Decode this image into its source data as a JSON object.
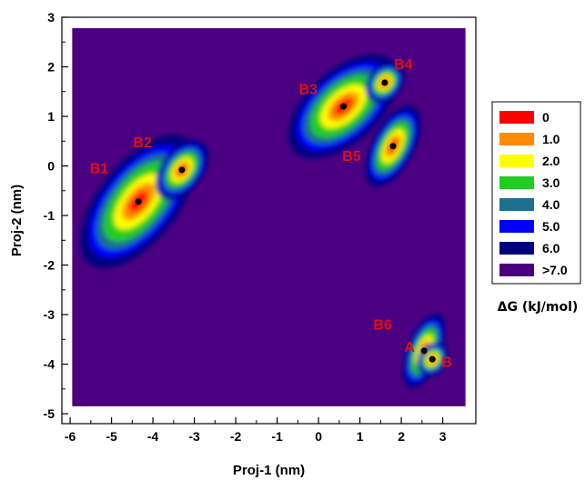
{
  "chart_data": {
    "type": "heatmap",
    "title": "",
    "xlabel": "Proj-1 (nm)",
    "ylabel": "Proj-2 (nm)",
    "xlim": [
      -6.2,
      3.8
    ],
    "ylim": [
      -5.2,
      3.0
    ],
    "x_ticks": [
      "-6",
      "-5",
      "-4",
      "-3",
      "-2",
      "-1",
      "0",
      "1",
      "2",
      "3"
    ],
    "y_ticks": [
      "3",
      "2",
      "1",
      "0",
      "-1",
      "-2",
      "-3",
      "-4",
      "-5"
    ],
    "plot_region": {
      "x": [
        -5.95,
        3.55
      ],
      "y": [
        -4.85,
        2.78
      ]
    },
    "background_color": "#4b0082",
    "legend": {
      "title": "ΔG (kJ/mol)",
      "position": "right",
      "entries": [
        {
          "label": "0",
          "color": "#ff0000"
        },
        {
          "label": "1.0",
          "color": "#ff8c00"
        },
        {
          "label": "2.0",
          "color": "#ffff00"
        },
        {
          "label": "3.0",
          "color": "#22cc22"
        },
        {
          "label": "4.0",
          "color": "#1f6f8f"
        },
        {
          "label": "5.0",
          "color": "#0000ff"
        },
        {
          "label": "6.0",
          "color": "#00007f"
        },
        {
          "label": ">7.0",
          "color": "#4b0082"
        }
      ]
    },
    "basins": [
      {
        "x": [
          -5.4,
          -4.0,
          -3.0
        ],
        "y": [
          -1.8,
          -0.6,
          0.7
        ],
        "min": [
          -4.35,
          -0.72
        ]
      },
      {
        "x": [
          -3.9,
          -3.3,
          -2.9
        ],
        "y": [
          -0.6,
          -0.08,
          0.5
        ],
        "min": [
          -3.3,
          -0.08
        ]
      },
      {
        "x": [
          -0.1,
          1.0,
          2.3
        ],
        "y": [
          0.4,
          1.2,
          2.2
        ],
        "min": [
          0.6,
          1.2
        ]
      },
      {
        "x": [
          1.3,
          1.8,
          2.3
        ],
        "y": [
          -0.6,
          0.4,
          1.0
        ],
        "min": [
          1.8,
          0.4
        ]
      },
      {
        "x": [
          1.2,
          1.6,
          1.9
        ],
        "y": [
          1.3,
          1.68,
          2.0
        ],
        "min": [
          1.6,
          1.68
        ]
      },
      {
        "x": [
          2.3,
          2.6,
          3.0
        ],
        "y": [
          -4.4,
          -3.8,
          -2.9
        ],
        "min": [
          2.55,
          -3.73
        ]
      },
      {
        "x": [
          2.5,
          2.75,
          3.0
        ],
        "y": [
          -4.2,
          -3.9,
          -3.6
        ],
        "min": [
          2.75,
          -3.9
        ]
      }
    ],
    "annotations": [
      {
        "text": "B1",
        "x": -5.3,
        "y": -0.15
      },
      {
        "text": "B2",
        "x": -4.25,
        "y": 0.38
      },
      {
        "text": "B3",
        "x": -0.25,
        "y": 1.45
      },
      {
        "text": "B4",
        "x": 2.05,
        "y": 1.95
      },
      {
        "text": "B5",
        "x": 0.8,
        "y": 0.1
      },
      {
        "text": "B6",
        "x": 1.55,
        "y": -3.3
      },
      {
        "text": "A",
        "x": 2.2,
        "y": -3.75
      },
      {
        "text": "B",
        "x": 3.1,
        "y": -4.05
      }
    ],
    "grid": false
  }
}
